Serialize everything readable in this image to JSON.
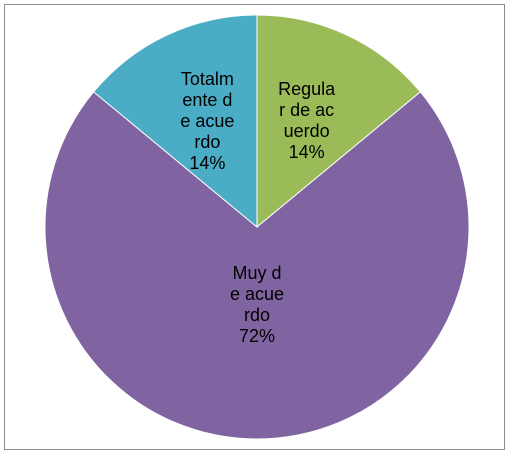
{
  "chart_data": {
    "type": "pie",
    "categories": [
      "Regular de acuerdo",
      "Muy de acuerdo",
      "Totalmente de acuerdo"
    ],
    "values": [
      14,
      72,
      14
    ],
    "value_labels": [
      "14%",
      "72%",
      "14%"
    ],
    "colors": [
      "#9bbb59",
      "#8064a2",
      "#4bacc6"
    ],
    "start_angle": 0,
    "direction": "clockwise"
  }
}
